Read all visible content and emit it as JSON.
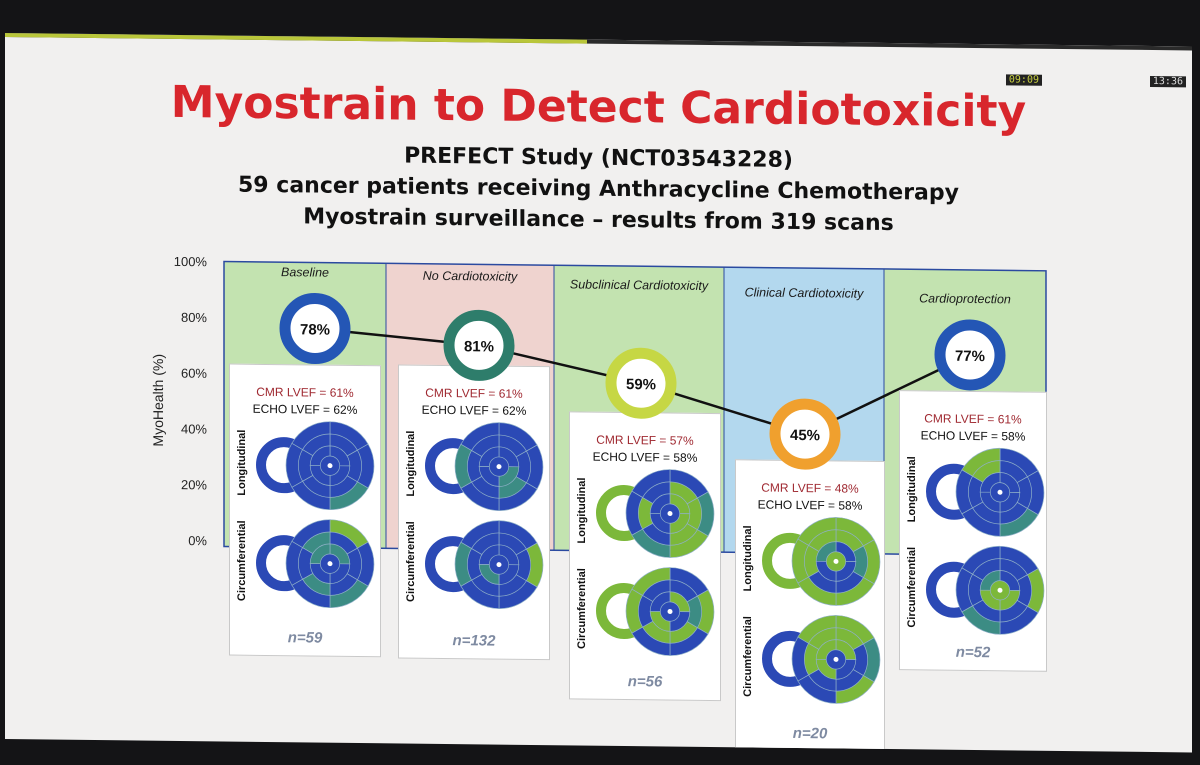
{
  "display": {
    "elapsed": "09:09",
    "clock": "13:36",
    "progress_fraction": 0.49
  },
  "slide": {
    "title": "Myostrain to Detect Cardiotoxicity",
    "subtitle_1": "PREFECT Study (NCT03543228)",
    "subtitle_2": "59 cancer patients receiving Anthracycline Chemotherapy",
    "subtitle_3": "Myostrain surveillance – results from 319 scans"
  },
  "colors": {
    "title": "#d8262c",
    "panel_green": "#c3e3b0",
    "panel_pink": "#efd3cf",
    "panel_blue": "#b3d8ee",
    "segment_blue": "#2b49b5",
    "segment_green": "#7cb83a",
    "segment_teal": "#3c8c84",
    "ring_blue": "#2456b5",
    "ring_teal": "#2e7d6b",
    "ring_yellowgreen": "#c6d744",
    "ring_orange": "#f0a02e"
  },
  "labels": {
    "longitudinal": "Longitudinal",
    "circumferential": "Circumferential"
  },
  "chart_data": {
    "type": "line",
    "ylabel": "MyoHealth (%)",
    "ylim": [
      0,
      100
    ],
    "yticks": [
      "0%",
      "20%",
      "40%",
      "60%",
      "80%",
      "100%"
    ],
    "categories": [
      "Baseline",
      "No Cardiotoxicity",
      "Subclinical Cardiotoxicity",
      "Clinical Cardiotoxicity",
      "Cardioprotection"
    ],
    "values": [
      78,
      81,
      59,
      45,
      77
    ],
    "value_labels": [
      "78%",
      "81%",
      "59%",
      "45%",
      "77%"
    ],
    "panels": [
      {
        "label": "Baseline",
        "cmr": "CMR LVEF = 61%",
        "echo": "ECHO LVEF = 62%",
        "n": "n=59",
        "ring_color": "#2456b5",
        "panel_color": "#c3e3b0",
        "green_share": 0.05
      },
      {
        "label": "No Cardiotoxicity",
        "cmr": "CMR LVEF = 61%",
        "echo": "ECHO LVEF = 62%",
        "n": "n=132",
        "ring_color": "#2e7d6b",
        "panel_color": "#efd3cf",
        "green_share": 0.15
      },
      {
        "label": "Subclinical Cardiotoxicity",
        "cmr": "CMR LVEF = 57%",
        "echo": "ECHO LVEF = 58%",
        "n": "n=56",
        "ring_color": "#c6d744",
        "panel_color": "#c3e3b0",
        "green_share": 0.4
      },
      {
        "label": "Clinical Cardiotoxicity",
        "cmr": "CMR LVEF = 48%",
        "echo": "ECHO LVEF = 58%",
        "n": "n=20",
        "ring_color": "#f0a02e",
        "panel_color": "#b3d8ee",
        "green_share": 0.65
      },
      {
        "label": "Cardioprotection",
        "cmr": "CMR LVEF = 61%",
        "echo": "ECHO LVEF = 58%",
        "n": "n=52",
        "ring_color": "#2456b5",
        "panel_color": "#c3e3b0",
        "green_share": 0.1
      }
    ]
  }
}
